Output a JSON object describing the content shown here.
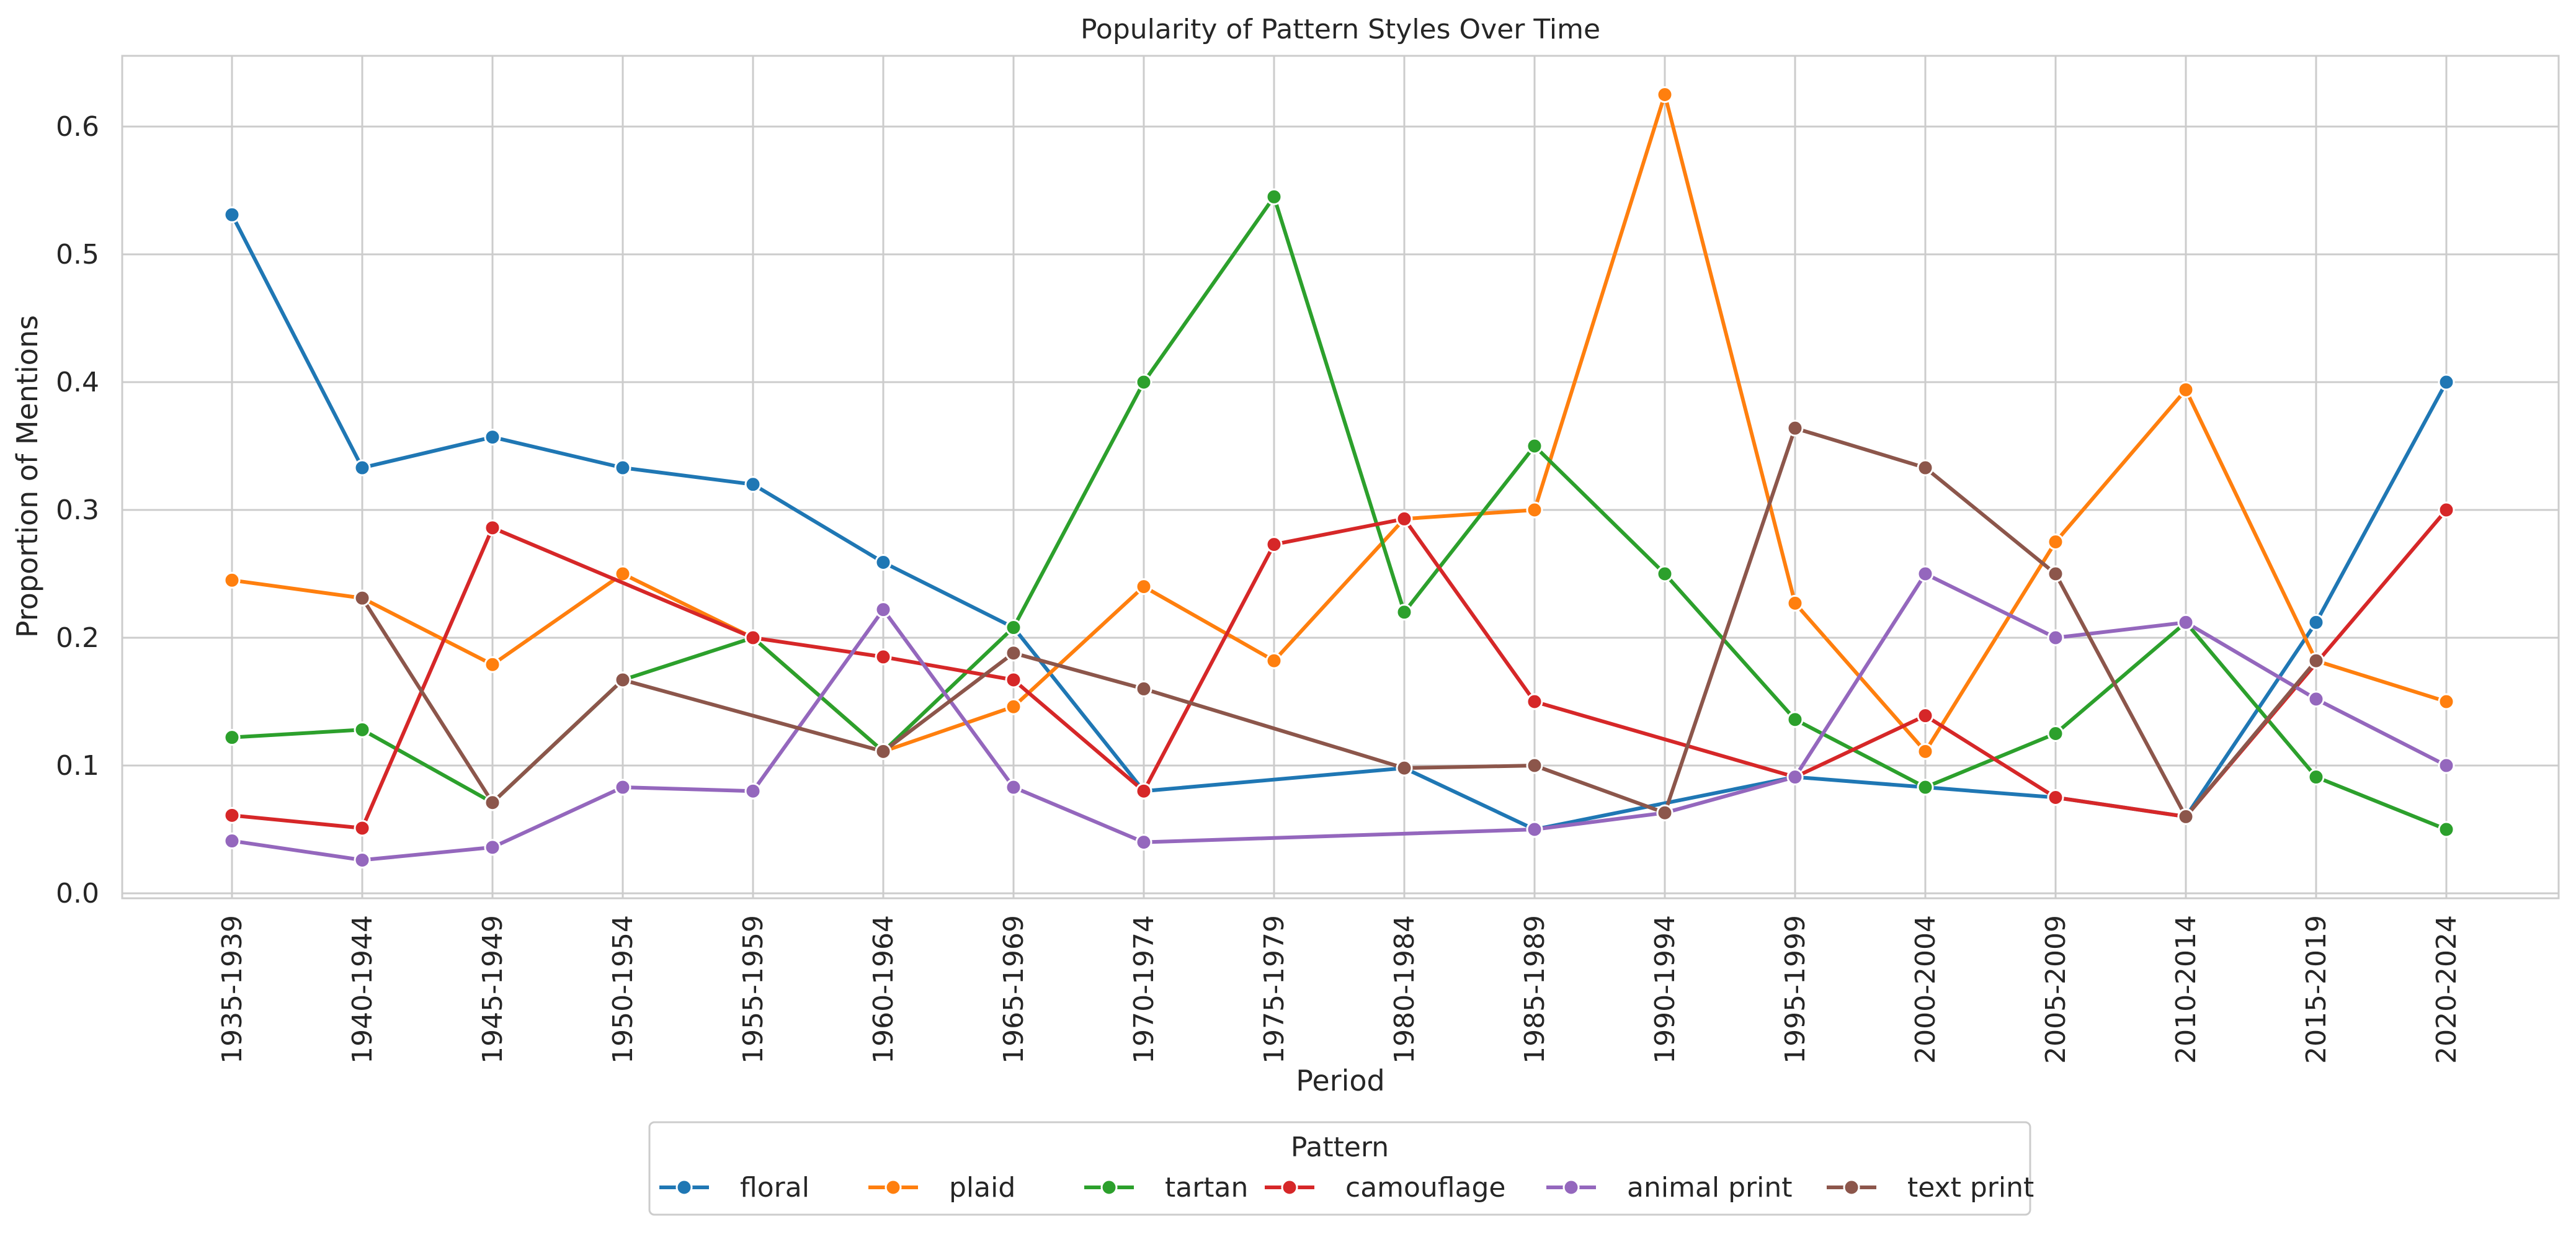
{
  "chart_data": {
    "type": "line",
    "title": "Popularity of Pattern Styles Over Time",
    "xlabel": "Period",
    "ylabel": "Proportion of Mentions",
    "ylim": [
      -0.005,
      0.655
    ],
    "yticks": [
      0.0,
      0.1,
      0.2,
      0.3,
      0.4,
      0.5,
      0.6
    ],
    "ytick_labels": [
      "0.0",
      "0.1",
      "0.2",
      "0.3",
      "0.4",
      "0.5",
      "0.6"
    ],
    "grid": true,
    "categories": [
      "1935-1939",
      "1940-1944",
      "1945-1949",
      "1950-1954",
      "1955-1959",
      "1960-1964",
      "1965-1969",
      "1970-1974",
      "1975-1979",
      "1980-1984",
      "1985-1989",
      "1990-1994",
      "1995-1999",
      "2000-2004",
      "2005-2009",
      "2010-2014",
      "2015-2019",
      "2020-2024"
    ],
    "legend": {
      "title": "Pattern",
      "placement": "bottom-center"
    },
    "series": [
      {
        "name": "floral",
        "color": "#1f77b4",
        "values": [
          0.531,
          0.333,
          0.357,
          0.333,
          0.32,
          0.259,
          0.208,
          0.08,
          null,
          0.098,
          0.05,
          null,
          0.091,
          0.083,
          0.075,
          0.06,
          0.212,
          0.4
        ]
      },
      {
        "name": "plaid",
        "color": "#ff7f0e",
        "values": [
          0.245,
          0.231,
          0.179,
          0.25,
          0.2,
          0.111,
          0.146,
          0.24,
          0.182,
          0.293,
          0.3,
          0.625,
          0.227,
          0.111,
          0.275,
          0.394,
          0.182,
          0.15
        ]
      },
      {
        "name": "tartan",
        "color": "#2ca02c",
        "values": [
          0.122,
          0.128,
          0.071,
          0.167,
          0.2,
          0.111,
          0.208,
          0.4,
          0.545,
          0.22,
          0.35,
          0.25,
          0.136,
          0.083,
          0.125,
          0.212,
          0.091,
          0.05
        ]
      },
      {
        "name": "camouflage",
        "color": "#d62728",
        "values": [
          0.061,
          0.051,
          0.286,
          null,
          0.2,
          0.185,
          0.167,
          0.08,
          0.273,
          0.293,
          0.15,
          null,
          0.091,
          0.139,
          0.075,
          0.06,
          null,
          0.3
        ]
      },
      {
        "name": "animal print",
        "color": "#9467bd",
        "values": [
          0.041,
          0.026,
          0.036,
          0.083,
          0.08,
          0.222,
          0.083,
          0.04,
          null,
          null,
          0.05,
          0.063,
          0.091,
          0.25,
          0.2,
          0.212,
          0.152,
          0.1
        ]
      },
      {
        "name": "text print",
        "color": "#8c564b",
        "values": [
          null,
          0.231,
          0.071,
          0.167,
          null,
          0.111,
          0.188,
          0.16,
          null,
          0.098,
          0.1,
          0.063,
          0.364,
          0.333,
          0.25,
          0.06,
          0.182,
          null
        ]
      }
    ]
  }
}
